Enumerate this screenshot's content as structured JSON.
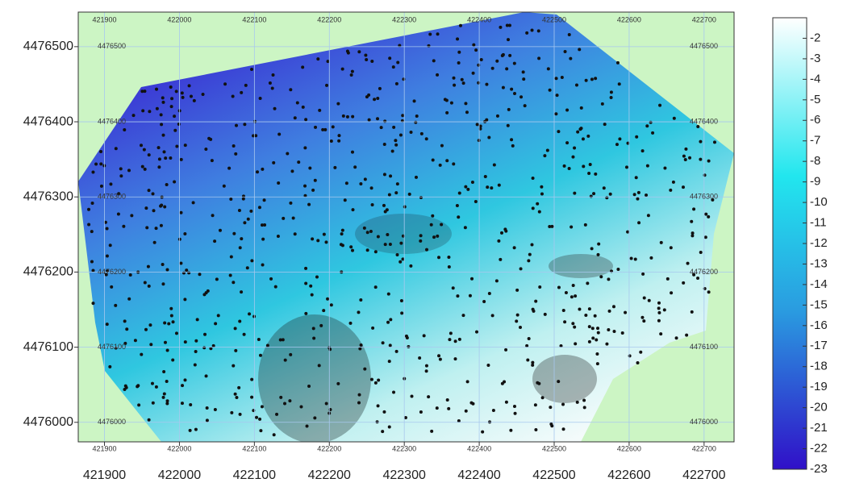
{
  "chart_data": {
    "type": "map",
    "xlim": [
      421865,
      422740
    ],
    "ylim": [
      4475974,
      4476546
    ],
    "xticks": [
      421900,
      422000,
      422100,
      422200,
      422300,
      422400,
      422500,
      422600,
      422700
    ],
    "yticks": [
      4476000,
      4476100,
      4476200,
      4476300,
      4476400,
      4476500
    ],
    "grid": true,
    "colorbar": {
      "lim": [
        -1,
        -23
      ],
      "ticks": [
        -2,
        -3,
        -4,
        -5,
        -6,
        -7,
        -8,
        -9,
        -10,
        -11,
        -12,
        -13,
        -14,
        -15,
        -16,
        -17,
        -18,
        -19,
        -20,
        -21,
        -22,
        -23
      ]
    }
  }
}
